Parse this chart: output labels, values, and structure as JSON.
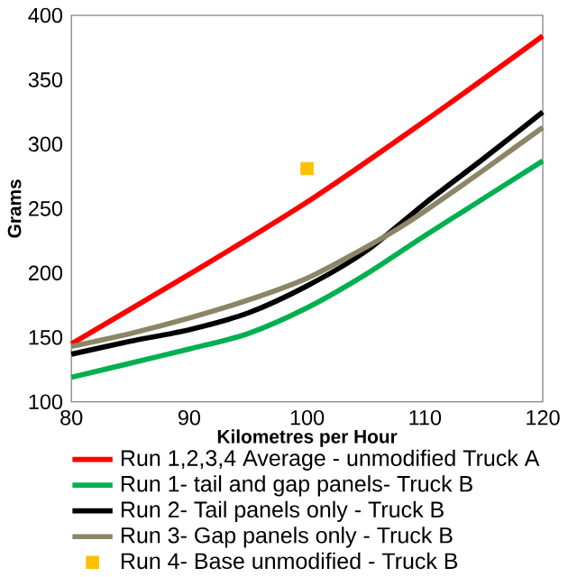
{
  "chart_data": {
    "type": "line",
    "xlabel": "Kilometres per Hour",
    "ylabel": "Grams",
    "xlim": [
      80,
      120
    ],
    "xticks": [
      80,
      90,
      100,
      110,
      120
    ],
    "ylim": [
      100,
      400
    ],
    "yticks": [
      100,
      150,
      200,
      250,
      300,
      350,
      400
    ],
    "grid": false,
    "legend": "bottom",
    "marker": "none",
    "series": [
      {
        "name": "Run 1,2,3,4 Average - unmodified Truck A",
        "color": "#ff0000",
        "x": [
          80,
          90,
          100,
          110,
          120
        ],
        "values": [
          145,
          199,
          255,
          318,
          384
        ]
      },
      {
        "name": "Run 1- tail and gap panels- Truck B",
        "color": "#00b050",
        "x": [
          80,
          85,
          90,
          95,
          100,
          105,
          110,
          115,
          120
        ],
        "values": [
          119,
          130,
          141,
          153,
          173,
          199,
          229,
          258,
          287
        ]
      },
      {
        "name": "Run 2- Tail panels only - Truck B",
        "color": "#000000",
        "x": [
          80,
          85,
          90,
          95,
          100,
          105,
          110,
          115,
          120
        ],
        "values": [
          137,
          147,
          156,
          169,
          190,
          217,
          254,
          289,
          325
        ]
      },
      {
        "name": "Run 3- Gap panels only - Truck B",
        "color": "#8c8566",
        "x": [
          80,
          85,
          90,
          95,
          100,
          105,
          108,
          110,
          115,
          120
        ],
        "values": [
          143,
          153,
          165,
          179,
          196,
          220,
          236,
          248,
          280,
          313
        ]
      },
      {
        "name": "Run 4- Base unmodified - Truck B",
        "color": "#ffc000",
        "type": "scatter",
        "marker": "square",
        "x": [
          100
        ],
        "values": [
          281
        ]
      }
    ]
  }
}
